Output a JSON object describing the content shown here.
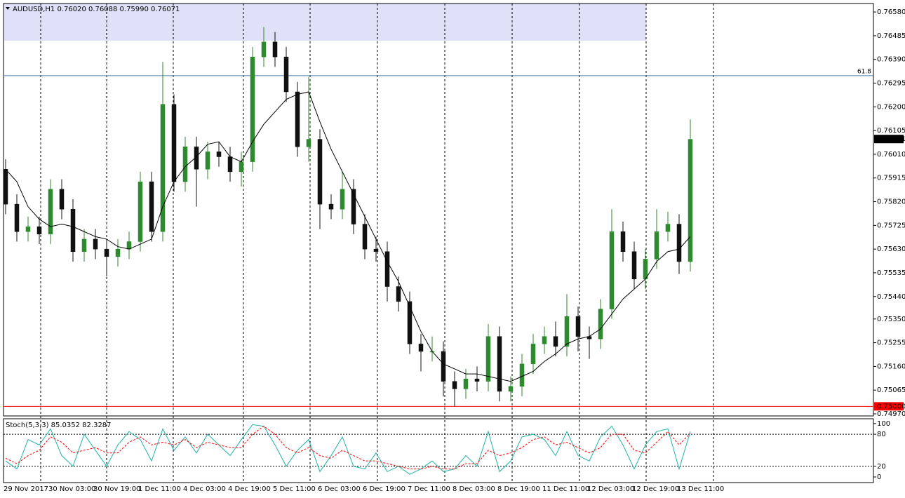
{
  "chart_data": [
    {
      "type": "candlestick",
      "title": "AUDUSD,H1  0.76020 0.76088 0.75990 0.76071",
      "categories": [
        "29 Nov 2017",
        null,
        null,
        null,
        "30 Nov 03:00",
        null,
        null,
        null,
        "30 Nov 19:00",
        null,
        null,
        null,
        "1 Dec 11:00",
        null,
        null,
        null,
        "4 Dec 03:00",
        null,
        null,
        null,
        "4 Dec 19:00",
        null,
        null,
        null,
        "5 Dec 11:00",
        null,
        null,
        null,
        "6 Dec 03:00",
        null,
        null,
        null,
        "6 Dec 19:00",
        null,
        null,
        null,
        "7 Dec 11:00",
        null,
        null,
        null,
        "8 Dec 03:00",
        null,
        null,
        null,
        "8 Dec 19:00",
        null,
        null,
        null,
        "11 Dec 11:00",
        null,
        null,
        null,
        "12 Dec 03:00",
        null,
        null,
        null,
        "12 Dec 19:00",
        null,
        null,
        null,
        "13 Dec 11:00",
        null
      ],
      "open": [
        0.7595,
        0.7581,
        0.757,
        0.7572,
        0.7569,
        0.7587,
        0.7579,
        0.7562,
        0.7567,
        0.7563,
        0.756,
        0.7563,
        0.7566,
        0.759,
        0.757,
        0.7621,
        0.759,
        0.7604,
        0.7595,
        0.7602,
        0.76,
        0.7594,
        0.7598,
        0.764,
        0.7646,
        0.764,
        0.7626,
        0.7604,
        0.7607,
        0.7581,
        0.7579,
        0.7587,
        0.7573,
        0.7563,
        0.7562,
        0.7548,
        0.7542,
        0.7525,
        0.7522,
        0.7522,
        0.751,
        0.7507,
        0.7511,
        0.751,
        0.7528,
        0.7506,
        0.7508,
        0.7517,
        0.7525,
        0.7528,
        0.7524,
        0.7536,
        0.7528,
        0.7527,
        0.7539,
        0.757,
        0.7562,
        0.7551,
        0.7559,
        0.757,
        0.7573,
        0.7558
      ],
      "high": [
        0.7599,
        0.7585,
        0.7576,
        0.7576,
        0.7591,
        0.7591,
        0.7583,
        0.7571,
        0.7571,
        0.7567,
        0.7567,
        0.757,
        0.7594,
        0.7594,
        0.7638,
        0.7625,
        0.7608,
        0.7608,
        0.7606,
        0.7606,
        0.7604,
        0.7602,
        0.7644,
        0.7652,
        0.765,
        0.7644,
        0.763,
        0.7632,
        0.7611,
        0.7585,
        0.7594,
        0.7591,
        0.7577,
        0.7568,
        0.7566,
        0.7552,
        0.7546,
        0.7529,
        0.7528,
        0.7526,
        0.7514,
        0.7515,
        0.7516,
        0.7533,
        0.7532,
        0.7512,
        0.7521,
        0.7529,
        0.7532,
        0.7534,
        0.7545,
        0.754,
        0.7532,
        0.7543,
        0.7579,
        0.7574,
        0.7566,
        0.7563,
        0.7579,
        0.7578,
        0.7577,
        0.7615
      ],
      "low": [
        0.7577,
        0.7566,
        0.7566,
        0.7565,
        0.7565,
        0.7575,
        0.7558,
        0.7558,
        0.7559,
        0.7552,
        0.7556,
        0.7559,
        0.7562,
        0.7566,
        0.7566,
        0.7586,
        0.7586,
        0.758,
        0.7591,
        0.7596,
        0.759,
        0.7588,
        0.7594,
        0.7636,
        0.7636,
        0.7622,
        0.76,
        0.7598,
        0.7571,
        0.7575,
        0.7575,
        0.7569,
        0.7559,
        0.7558,
        0.7542,
        0.7538,
        0.7521,
        0.7514,
        0.7518,
        0.7504,
        0.75,
        0.7503,
        0.7506,
        0.7506,
        0.7502,
        0.7502,
        0.7504,
        0.7513,
        0.7521,
        0.752,
        0.752,
        0.7522,
        0.7519,
        0.7523,
        0.7535,
        0.7558,
        0.7547,
        0.7547,
        0.7555,
        0.7566,
        0.7553,
        0.7554
      ],
      "close": [
        0.7581,
        0.757,
        0.7572,
        0.7569,
        0.7587,
        0.7579,
        0.7562,
        0.7567,
        0.7563,
        0.756,
        0.7563,
        0.7566,
        0.759,
        0.757,
        0.7621,
        0.759,
        0.7604,
        0.7595,
        0.7602,
        0.76,
        0.7594,
        0.7598,
        0.764,
        0.7646,
        0.764,
        0.7626,
        0.7604,
        0.7607,
        0.7581,
        0.7579,
        0.7587,
        0.7573,
        0.7563,
        0.7562,
        0.7548,
        0.7542,
        0.7525,
        0.7522,
        0.7522,
        0.751,
        0.7507,
        0.7511,
        0.751,
        0.7528,
        0.7506,
        0.7508,
        0.7517,
        0.7525,
        0.7528,
        0.7524,
        0.7536,
        0.7528,
        0.7527,
        0.7539,
        0.757,
        0.7562,
        0.7551,
        0.7559,
        0.757,
        0.7573,
        0.7558,
        0.7607
      ],
      "ma": [
        0.7595,
        0.759,
        0.758,
        0.7575,
        0.7572,
        0.7573,
        0.7572,
        0.757,
        0.7568,
        0.7567,
        0.7564,
        0.7563,
        0.7565,
        0.7567,
        0.758,
        0.759,
        0.7596,
        0.76,
        0.7605,
        0.7606,
        0.76,
        0.7598,
        0.7606,
        0.7613,
        0.7618,
        0.7623,
        0.7625,
        0.7626,
        0.7614,
        0.7603,
        0.7594,
        0.7585,
        0.7576,
        0.7567,
        0.7558,
        0.755,
        0.754,
        0.753,
        0.7522,
        0.7517,
        0.7515,
        0.7513,
        0.7513,
        0.7512,
        0.7511,
        0.751,
        0.7512,
        0.7514,
        0.7518,
        0.7521,
        0.7525,
        0.7527,
        0.7528,
        0.7531,
        0.7537,
        0.7543,
        0.7547,
        0.7551,
        0.7558,
        0.7562,
        0.7563,
        0.7568
      ],
      "ma_color": "#000000",
      "up_color": "#2d8a2d",
      "down_color": "#111111",
      "ylim": [
        0.7497,
        0.76614
      ],
      "yticks": [
        {
          "value": 0.7658,
          "label": "0.76580"
        },
        {
          "value": 0.76485,
          "label": "0.76485"
        },
        {
          "value": 0.7639,
          "label": "0.76390"
        },
        {
          "value": 0.76295,
          "label": "0.76295"
        },
        {
          "value": 0.762,
          "label": "0.76200"
        },
        {
          "value": 0.76105,
          "label": "0.76105"
        },
        {
          "value": 0.7601,
          "label": "0.76010"
        },
        {
          "value": 0.75915,
          "label": "0.75915"
        },
        {
          "value": 0.7582,
          "label": "0.75820"
        },
        {
          "value": 0.75725,
          "label": "0.75725"
        },
        {
          "value": 0.7563,
          "label": "0.75630"
        },
        {
          "value": 0.75535,
          "label": "0.75535"
        },
        {
          "value": 0.7544,
          "label": "0.75440"
        },
        {
          "value": 0.7535,
          "label": "0.75350"
        },
        {
          "value": 0.75255,
          "label": "0.75255"
        },
        {
          "value": 0.7516,
          "label": "0.75160"
        },
        {
          "value": 0.75065,
          "label": "0.75065"
        },
        {
          "value": 0.7497,
          "label": "0.74970"
        }
      ],
      "zone": [
        0.76465,
        0.76614
      ],
      "zone_color": "#e0e0f8",
      "fib": {
        "value": 0.76325,
        "label": "61.8",
        "color": "#4a7fb0"
      },
      "level": {
        "value": 0.75,
        "label": "0.75000",
        "color": "#ff0000"
      },
      "last": {
        "value": 0.76071,
        "label": "0.76071"
      }
    },
    {
      "type": "stochastic",
      "title": "Stoch(5,3,3) 85.0352 82.3287",
      "series": [
        {
          "color": "#20b2aa",
          "values": [
            30,
            15,
            70,
            60,
            90,
            40,
            20,
            80,
            50,
            20,
            60,
            85,
            70,
            30,
            90,
            50,
            75,
            45,
            80,
            60,
            40,
            70,
            98,
            95,
            60,
            20,
            50,
            70,
            10,
            40,
            75,
            20,
            15,
            45,
            10,
            20,
            5,
            15,
            30,
            10,
            15,
            40,
            20,
            85,
            10,
            30,
            75,
            80,
            70,
            40,
            85,
            40,
            30,
            75,
            95,
            60,
            15,
            60,
            85,
            90,
            15,
            85
          ]
        },
        {
          "color": "#ff0000",
          "values": [
            35,
            25,
            40,
            50,
            75,
            65,
            45,
            50,
            55,
            45,
            45,
            65,
            75,
            60,
            65,
            60,
            70,
            55,
            65,
            60,
            55,
            55,
            80,
            95,
            80,
            55,
            45,
            55,
            40,
            35,
            50,
            40,
            30,
            30,
            25,
            20,
            15,
            15,
            20,
            15,
            15,
            25,
            25,
            50,
            40,
            45,
            55,
            70,
            75,
            60,
            65,
            55,
            45,
            55,
            80,
            80,
            50,
            45,
            65,
            85,
            60,
            82
          ]
        }
      ],
      "ylim": [
        -10.5,
        109
      ],
      "yticks": [
        100,
        80,
        20,
        0
      ],
      "levels": [
        80,
        20
      ]
    }
  ]
}
